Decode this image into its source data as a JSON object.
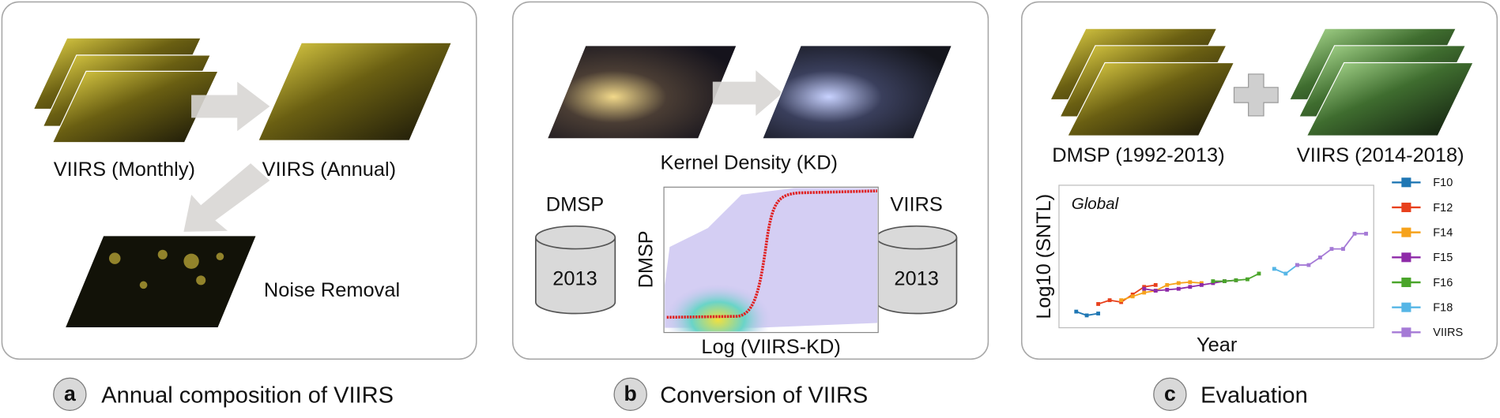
{
  "panels": [
    {
      "letter": "a",
      "caption": "Annual composition of VIIRS",
      "labels": [
        "VIIRS (Monthly)",
        "VIIRS (Annual)",
        "Noise Removal"
      ]
    },
    {
      "letter": "b",
      "caption": "Conversion of VIIRS",
      "kd_label": "Kernel Density (KD)",
      "left_store": {
        "name": "DMSP",
        "year": "2013"
      },
      "right_store": {
        "name": "VIIRS",
        "year": "2013"
      },
      "plot": {
        "y_label": "DMSP",
        "x_label": "Log (VIIRS-KD)"
      }
    },
    {
      "letter": "c",
      "caption": "Evaluation",
      "labels": [
        "DMSP (1992-2013)",
        "VIIRS (2014-2018)"
      ],
      "chart": {
        "title": "Global",
        "y_label": "Log10 (SNTL)",
        "x_label": "Year",
        "legend": [
          {
            "name": "F10",
            "color": "#1f77b4"
          },
          {
            "name": "F12",
            "color": "#e8401c"
          },
          {
            "name": "F14",
            "color": "#f6a21b"
          },
          {
            "name": "F15",
            "color": "#8e2aa8"
          },
          {
            "name": "F16",
            "color": "#4aa52a"
          },
          {
            "name": "F18",
            "color": "#56b6e6"
          },
          {
            "name": "VIIRS",
            "color": "#a57ad6"
          }
        ]
      }
    }
  ]
}
